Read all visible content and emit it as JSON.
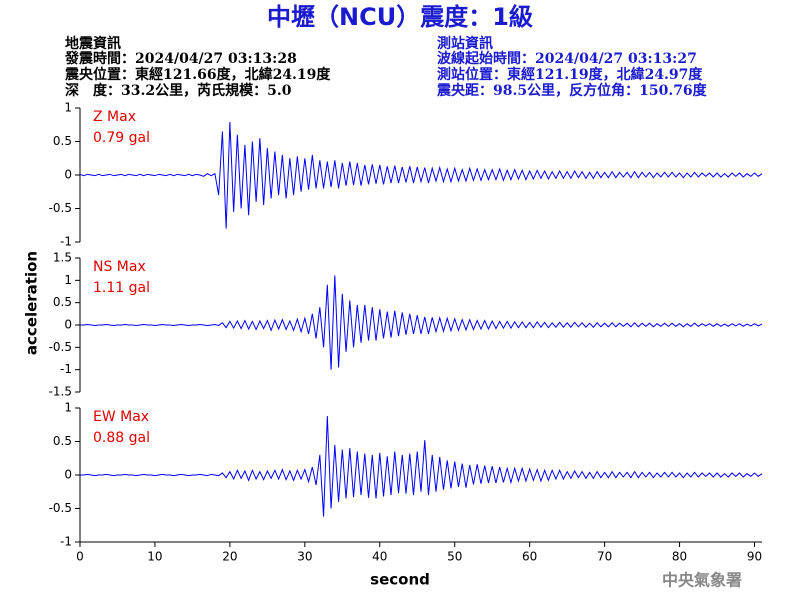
{
  "header": {
    "title": "中壢（NCU）震度：1級",
    "left": [
      "地震資訊",
      "發震時間：2024/04/27 03:13:28",
      "震央位置：東經121.66度，北緯24.19度",
      "深　度：33.2公里，芮氏規模：5.0"
    ],
    "right": [
      "測站資訊",
      "波線起始時間：2024/04/27 03:13:27",
      "測站位置：東經121.19度，北緯24.97度",
      "震央距：98.5公里，反方位角：150.76度"
    ]
  },
  "y_label": "acceleration",
  "x_label": "second",
  "footer": "中央氣象署",
  "chart_data": [
    {
      "type": "line",
      "label": "Z Max",
      "max_label": "0.79 gal",
      "label_color": "#e00000",
      "color": "#0000ff",
      "xlim": [
        0,
        91
      ],
      "ylim": [
        -1,
        1
      ],
      "yticks": [
        -1,
        -0.5,
        0,
        0.5,
        1
      ],
      "x": [
        0,
        0.5,
        1,
        1.5,
        2,
        2.5,
        3,
        3.5,
        4,
        4.5,
        5,
        5.5,
        6,
        6.5,
        7,
        7.5,
        8,
        8.5,
        9,
        9.5,
        10,
        10.5,
        11,
        11.5,
        12,
        12.5,
        13,
        13.5,
        14,
        14.5,
        15,
        15.5,
        16,
        16.5,
        17,
        17.5,
        18,
        18.5,
        19,
        19.5,
        20,
        20.5,
        21,
        21.5,
        22,
        22.5,
        23,
        23.5,
        24,
        24.5,
        25,
        25.5,
        26,
        26.5,
        27,
        27.5,
        28,
        28.5,
        29,
        29.5,
        30,
        30.5,
        31,
        31.5,
        32,
        32.5,
        33,
        33.5,
        34,
        34.5,
        35,
        35.5,
        36,
        36.5,
        37,
        37.5,
        38,
        38.5,
        39,
        39.5,
        40,
        40.5,
        41,
        41.5,
        42,
        42.5,
        43,
        43.5,
        44,
        44.5,
        45,
        45.5,
        46,
        46.5,
        47,
        47.5,
        48,
        48.5,
        49,
        49.5,
        50,
        50.5,
        51,
        51.5,
        52,
        52.5,
        53,
        53.5,
        54,
        54.5,
        55,
        55.5,
        56,
        56.5,
        57,
        57.5,
        58,
        58.5,
        59,
        59.5,
        60,
        60.5,
        61,
        61.5,
        62,
        62.5,
        63,
        63.5,
        64,
        64.5,
        65,
        65.5,
        66,
        66.5,
        67,
        67.5,
        68,
        68.5,
        69,
        69.5,
        70,
        70.5,
        71,
        71.5,
        72,
        72.5,
        73,
        73.5,
        74,
        74.5,
        75,
        75.5,
        76,
        76.5,
        77,
        77.5,
        78,
        78.5,
        79,
        79.5,
        80,
        80.5,
        81,
        81.5,
        82,
        82.5,
        83,
        83.5,
        84,
        84.5,
        85,
        85.5,
        86,
        86.5,
        87,
        87.5,
        88,
        88.5,
        89,
        89.5,
        90,
        90.5,
        91
      ],
      "values": [
        0.01,
        -0.01,
        0.01,
        0,
        -0.01,
        0.01,
        -0.01,
        0,
        0.01,
        -0.01,
        0,
        0.01,
        -0.01,
        0.01,
        0,
        -0.01,
        0.01,
        -0.01,
        0.01,
        0,
        -0.01,
        0.01,
        0,
        -0.01,
        0.01,
        -0.01,
        0.01,
        0,
        -0.01,
        0.01,
        -0.01,
        0.01,
        0,
        -0.02,
        0.02,
        -0.01,
        0.02,
        -0.3,
        0.65,
        -0.8,
        0.79,
        -0.55,
        0.6,
        -0.5,
        0.45,
        -0.6,
        0.5,
        -0.4,
        0.55,
        -0.45,
        0.4,
        -0.35,
        0.35,
        -0.3,
        0.3,
        -0.35,
        0.25,
        -0.3,
        0.28,
        -0.25,
        0.25,
        -0.22,
        0.3,
        -0.2,
        0.22,
        -0.2,
        0.2,
        -0.18,
        0.22,
        -0.2,
        0.18,
        -0.16,
        0.2,
        -0.15,
        0.18,
        -0.16,
        0.15,
        -0.14,
        0.16,
        -0.13,
        0.15,
        -0.14,
        0.13,
        -0.12,
        0.14,
        -0.12,
        0.12,
        -0.11,
        0.13,
        -0.12,
        0.12,
        -0.1,
        0.11,
        -0.12,
        0.1,
        -0.09,
        0.11,
        -0.1,
        0.09,
        -0.1,
        0.1,
        -0.09,
        0.08,
        -0.09,
        0.1,
        -0.08,
        0.09,
        -0.08,
        0.08,
        -0.07,
        0.08,
        -0.07,
        0.09,
        -0.08,
        0.07,
        -0.07,
        0.08,
        -0.06,
        0.07,
        -0.07,
        0.06,
        -0.06,
        0.07,
        -0.05,
        0.06,
        -0.06,
        0.05,
        -0.05,
        0.06,
        -0.05,
        0.05,
        -0.05,
        0.06,
        -0.04,
        0.05,
        -0.05,
        0.04,
        -0.05,
        0.05,
        -0.04,
        0.04,
        -0.04,
        0.05,
        -0.04,
        0.04,
        -0.03,
        0.04,
        -0.04,
        0.05,
        -0.04,
        0.04,
        -0.03,
        0.04,
        -0.04,
        0.03,
        -0.03,
        0.04,
        -0.03,
        0.04,
        -0.03,
        0.03,
        -0.04,
        0.03,
        -0.03,
        0.04,
        -0.03,
        0.03,
        -0.02,
        0.03,
        -0.03,
        0.03,
        -0.03,
        0.02,
        -0.03,
        0.03,
        -0.02,
        0.03,
        -0.03,
        0.02,
        -0.02,
        0.03,
        -0.02,
        0.02
      ]
    },
    {
      "type": "line",
      "label": "NS Max",
      "max_label": "1.11 gal",
      "label_color": "#e00000",
      "color": "#0000ff",
      "xlim": [
        0,
        91
      ],
      "ylim": [
        -1.5,
        1.5
      ],
      "yticks": [
        -1.5,
        -1,
        -0.5,
        0,
        0.5,
        1,
        1.5
      ],
      "x": [
        0,
        0.5,
        1,
        1.5,
        2,
        2.5,
        3,
        3.5,
        4,
        4.5,
        5,
        5.5,
        6,
        6.5,
        7,
        7.5,
        8,
        8.5,
        9,
        9.5,
        10,
        10.5,
        11,
        11.5,
        12,
        12.5,
        13,
        13.5,
        14,
        14.5,
        15,
        15.5,
        16,
        16.5,
        17,
        17.5,
        18,
        18.5,
        19,
        19.5,
        20,
        20.5,
        21,
        21.5,
        22,
        22.5,
        23,
        23.5,
        24,
        24.5,
        25,
        25.5,
        26,
        26.5,
        27,
        27.5,
        28,
        28.5,
        29,
        29.5,
        30,
        30.5,
        31,
        31.5,
        32,
        32.5,
        33,
        33.5,
        34,
        34.5,
        35,
        35.5,
        36,
        36.5,
        37,
        37.5,
        38,
        38.5,
        39,
        39.5,
        40,
        40.5,
        41,
        41.5,
        42,
        42.5,
        43,
        43.5,
        44,
        44.5,
        45,
        45.5,
        46,
        46.5,
        47,
        47.5,
        48,
        48.5,
        49,
        49.5,
        50,
        50.5,
        51,
        51.5,
        52,
        52.5,
        53,
        53.5,
        54,
        54.5,
        55,
        55.5,
        56,
        56.5,
        57,
        57.5,
        58,
        58.5,
        59,
        59.5,
        60,
        60.5,
        61,
        61.5,
        62,
        62.5,
        63,
        63.5,
        64,
        64.5,
        65,
        65.5,
        66,
        66.5,
        67,
        67.5,
        68,
        68.5,
        69,
        69.5,
        70,
        70.5,
        71,
        71.5,
        72,
        72.5,
        73,
        73.5,
        74,
        74.5,
        75,
        75.5,
        76,
        76.5,
        77,
        77.5,
        78,
        78.5,
        79,
        79.5,
        80,
        80.5,
        81,
        81.5,
        82,
        82.5,
        83,
        83.5,
        84,
        84.5,
        85,
        85.5,
        86,
        86.5,
        87,
        87.5,
        88,
        88.5,
        89,
        89.5,
        90,
        90.5,
        91
      ],
      "values": [
        0,
        0,
        0.01,
        0,
        -0.01,
        0,
        0,
        0.01,
        0,
        -0.01,
        0,
        0,
        0.01,
        0,
        0,
        -0.01,
        0,
        0.01,
        0,
        0,
        -0.01,
        0,
        0.01,
        0,
        0,
        -0.01,
        0,
        0.01,
        0,
        -0.01,
        0,
        0,
        0.01,
        0,
        -0.01,
        0,
        0.01,
        -0.01,
        0.05,
        -0.06,
        0.08,
        -0.07,
        0.09,
        -0.08,
        0.1,
        -0.09,
        0.08,
        -0.1,
        0.09,
        -0.08,
        0.1,
        -0.12,
        0.11,
        -0.09,
        0.12,
        -0.1,
        0.09,
        -0.12,
        0.13,
        -0.15,
        0.15,
        -0.2,
        0.25,
        -0.3,
        0.4,
        -0.5,
        0.9,
        -1.0,
        1.11,
        -0.95,
        0.7,
        -0.6,
        0.55,
        -0.5,
        0.45,
        -0.4,
        0.45,
        -0.35,
        0.4,
        -0.35,
        0.35,
        -0.3,
        0.3,
        -0.28,
        0.32,
        -0.25,
        0.28,
        -0.22,
        0.25,
        -0.2,
        0.22,
        -0.2,
        0.18,
        -0.2,
        0.17,
        -0.15,
        0.16,
        -0.14,
        0.15,
        -0.13,
        0.14,
        -0.12,
        0.12,
        -0.11,
        0.12,
        -0.1,
        0.1,
        -0.09,
        0.1,
        -0.09,
        0.09,
        -0.08,
        0.08,
        -0.07,
        0.08,
        -0.07,
        0.07,
        -0.06,
        0.07,
        -0.06,
        0.06,
        -0.06,
        0.07,
        -0.05,
        0.06,
        -0.06,
        0.05,
        -0.05,
        0.06,
        -0.05,
        0.05,
        -0.05,
        0.06,
        -0.04,
        0.05,
        -0.05,
        0.04,
        -0.05,
        0.05,
        -0.04,
        0.04,
        -0.04,
        0.05,
        -0.04,
        0.04,
        -0.03,
        0.04,
        -0.04,
        0.05,
        -0.04,
        0.04,
        -0.03,
        0.04,
        -0.04,
        0.03,
        -0.03,
        0.04,
        -0.03,
        0.04,
        -0.03,
        0.03,
        -0.04,
        0.03,
        -0.03,
        0.04,
        -0.03,
        0.03,
        -0.02,
        0.03,
        -0.03,
        0.03,
        -0.03,
        0.02,
        -0.03,
        0.03,
        -0.02,
        0.03,
        -0.03,
        0.02,
        -0.02,
        0.03,
        -0.02,
        0.02
      ]
    },
    {
      "type": "line",
      "label": "EW Max",
      "max_label": "0.88 gal",
      "label_color": "#e00000",
      "color": "#0000ff",
      "xlim": [
        0,
        91
      ],
      "ylim": [
        -1,
        1
      ],
      "yticks": [
        -1,
        -0.5,
        0,
        0.5,
        1
      ],
      "xticks": [
        0,
        10,
        20,
        30,
        40,
        50,
        60,
        70,
        80,
        90
      ],
      "x": [
        0,
        0.5,
        1,
        1.5,
        2,
        2.5,
        3,
        3.5,
        4,
        4.5,
        5,
        5.5,
        6,
        6.5,
        7,
        7.5,
        8,
        8.5,
        9,
        9.5,
        10,
        10.5,
        11,
        11.5,
        12,
        12.5,
        13,
        13.5,
        14,
        14.5,
        15,
        15.5,
        16,
        16.5,
        17,
        17.5,
        18,
        18.5,
        19,
        19.5,
        20,
        20.5,
        21,
        21.5,
        22,
        22.5,
        23,
        23.5,
        24,
        24.5,
        25,
        25.5,
        26,
        26.5,
        27,
        27.5,
        28,
        28.5,
        29,
        29.5,
        30,
        30.5,
        31,
        31.5,
        32,
        32.5,
        33,
        33.5,
        34,
        34.5,
        35,
        35.5,
        36,
        36.5,
        37,
        37.5,
        38,
        38.5,
        39,
        39.5,
        40,
        40.5,
        41,
        41.5,
        42,
        42.5,
        43,
        43.5,
        44,
        44.5,
        45,
        45.5,
        46,
        46.5,
        47,
        47.5,
        48,
        48.5,
        49,
        49.5,
        50,
        50.5,
        51,
        51.5,
        52,
        52.5,
        53,
        53.5,
        54,
        54.5,
        55,
        55.5,
        56,
        56.5,
        57,
        57.5,
        58,
        58.5,
        59,
        59.5,
        60,
        60.5,
        61,
        61.5,
        62,
        62.5,
        63,
        63.5,
        64,
        64.5,
        65,
        65.5,
        66,
        66.5,
        67,
        67.5,
        68,
        68.5,
        69,
        69.5,
        70,
        70.5,
        71,
        71.5,
        72,
        72.5,
        73,
        73.5,
        74,
        74.5,
        75,
        75.5,
        76,
        76.5,
        77,
        77.5,
        78,
        78.5,
        79,
        79.5,
        80,
        80.5,
        81,
        81.5,
        82,
        82.5,
        83,
        83.5,
        84,
        84.5,
        85,
        85.5,
        86,
        86.5,
        87,
        87.5,
        88,
        88.5,
        89,
        89.5,
        90,
        90.5,
        91
      ],
      "values": [
        0,
        0,
        0.01,
        0,
        -0.01,
        0,
        0,
        0.01,
        0,
        -0.01,
        0,
        0,
        0.01,
        0,
        0,
        -0.01,
        0,
        0.01,
        0,
        0,
        -0.01,
        0,
        0.01,
        0,
        0,
        -0.01,
        0,
        0.01,
        0,
        -0.01,
        0,
        0,
        0.01,
        0,
        -0.01,
        0.01,
        0,
        -0.01,
        0.03,
        -0.04,
        0.05,
        -0.06,
        0.07,
        -0.05,
        0.06,
        -0.08,
        0.07,
        -0.06,
        0.05,
        -0.07,
        0.06,
        -0.05,
        0.07,
        -0.06,
        0.08,
        -0.07,
        0.06,
        -0.08,
        0.07,
        -0.06,
        0.08,
        -0.1,
        0.12,
        -0.15,
        0.3,
        -0.62,
        0.88,
        -0.5,
        0.45,
        -0.4,
        0.38,
        -0.35,
        0.4,
        -0.33,
        0.35,
        -0.3,
        0.32,
        -0.34,
        0.3,
        -0.35,
        0.33,
        -0.32,
        0.28,
        -0.3,
        0.35,
        -0.27,
        0.3,
        -0.28,
        0.32,
        -0.3,
        0.35,
        -0.25,
        0.52,
        -0.3,
        0.3,
        -0.25,
        0.27,
        -0.22,
        0.22,
        -0.2,
        0.2,
        -0.18,
        0.17,
        -0.19,
        0.15,
        -0.14,
        0.16,
        -0.13,
        0.14,
        -0.12,
        0.13,
        -0.12,
        0.12,
        -0.11,
        0.1,
        -0.11,
        0.1,
        -0.09,
        0.1,
        -0.09,
        0.09,
        -0.08,
        0.08,
        -0.09,
        0.07,
        -0.08,
        0.07,
        -0.06,
        0.07,
        -0.06,
        0.05,
        -0.05,
        0.06,
        -0.04,
        0.05,
        -0.05,
        0.04,
        -0.05,
        0.05,
        -0.04,
        0.04,
        -0.04,
        0.05,
        -0.04,
        0.04,
        -0.03,
        0.04,
        -0.04,
        0.05,
        -0.04,
        0.04,
        -0.03,
        0.04,
        -0.04,
        0.03,
        -0.03,
        0.04,
        -0.03,
        0.04,
        -0.03,
        0.03,
        -0.04,
        0.03,
        -0.03,
        0.04,
        -0.03,
        0.03,
        -0.02,
        0.03,
        -0.03,
        0.03,
        -0.03,
        0.02,
        -0.03,
        0.03,
        -0.02,
        0.03,
        -0.03,
        0.02,
        -0.02,
        0.03,
        -0.02,
        0.02
      ]
    }
  ]
}
